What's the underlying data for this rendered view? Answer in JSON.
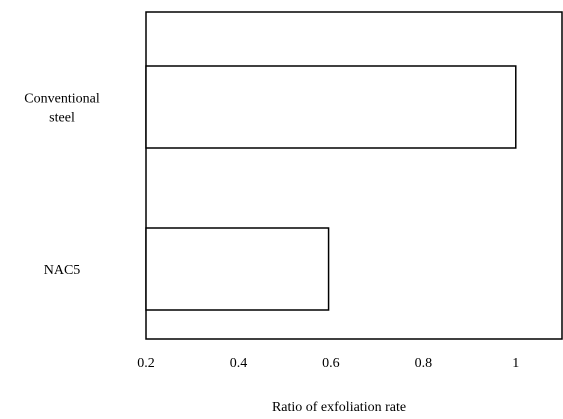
{
  "chart_data": {
    "type": "bar",
    "orientation": "horizontal",
    "categories": [
      {
        "lines": [
          "Conventional",
          "steel"
        ]
      },
      {
        "lines": [
          "NAC5"
        ]
      }
    ],
    "values": [
      1.0,
      0.595
    ],
    "xlabel": "Ratio of exfoliation rate",
    "xlim": [
      0.2,
      1.1
    ],
    "xticks": [
      0.2,
      0.4,
      0.6,
      0.8,
      1
    ],
    "xtick_labels": [
      "0.2",
      "0.4",
      "0.6",
      "0.8",
      "1"
    ],
    "grid": false,
    "legend": "none",
    "colors": {
      "bar_fill": "#ffffff",
      "bar_stroke": "#000000",
      "frame": "#000000"
    }
  }
}
